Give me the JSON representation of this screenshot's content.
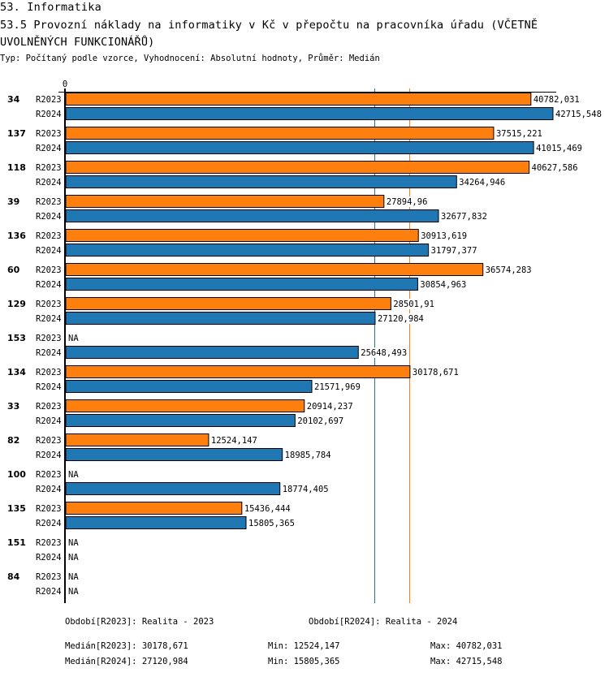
{
  "header": {
    "section": "53. Informatika",
    "title": "53.5 Provozní náklady na informatiky v Kč v přepočtu na pracovníka úřadu (VČETNĚ UVOLNĚNÝCH FUNKCIONÁŘŮ)",
    "subtitle": "Typ: Počítaný podle vzorce, Vyhodnocení: Absolutní hodnoty, Průměr: Medián"
  },
  "colors": {
    "R2023": "#ff7f0e",
    "R2024": "#1f77b4"
  },
  "chart_data": {
    "type": "bar",
    "orientation": "horizontal",
    "title": "53.5 Provozní náklady na informatiky v Kč v přepočtu na pracovníka úřadu (VČETNĚ UVOLNĚNÝCH FUNKCIONÁŘŮ)",
    "xlabel": "",
    "ylabel": "",
    "x_tick_labels": [
      "0"
    ],
    "xlim": [
      0,
      42715.548
    ],
    "categories": [
      "34",
      "137",
      "118",
      "39",
      "136",
      "60",
      "129",
      "153",
      "134",
      "33",
      "82",
      "100",
      "135",
      "151",
      "84"
    ],
    "series": [
      {
        "name": "R2023",
        "color": "#ff7f0e",
        "values": [
          40782.031,
          37515.221,
          40627.586,
          27894.96,
          30913.619,
          36574.283,
          28501.91,
          null,
          30178.671,
          20914.237,
          12524.147,
          null,
          15436.444,
          null,
          null
        ],
        "labels": [
          "40782,031",
          "37515,221",
          "40627,586",
          "27894,96",
          "30913,619",
          "36574,283",
          "28501,91",
          "NA",
          "30178,671",
          "20914,237",
          "12524,147",
          "NA",
          "15436,444",
          "NA",
          "NA"
        ]
      },
      {
        "name": "R2024",
        "color": "#1f77b4",
        "values": [
          42715.548,
          41015.469,
          34264.946,
          32677.832,
          31797.377,
          30854.963,
          27120.984,
          25648.493,
          21571.969,
          20102.697,
          18985.784,
          18774.405,
          15805.365,
          null,
          null
        ],
        "labels": [
          "42715,548",
          "41015,469",
          "34264,946",
          "32677,832",
          "31797,377",
          "30854,963",
          "27120,984",
          "25648,493",
          "21571,969",
          "20102,697",
          "18985,784",
          "18774,405",
          "15805,365",
          "NA",
          "NA"
        ]
      }
    ],
    "reference_lines": [
      {
        "name": "Medián R2023",
        "value": 30178.671,
        "color": "#ff7f0e"
      },
      {
        "name": "Medián R2024",
        "value": 27120.984,
        "color": "#1f77b4"
      }
    ],
    "grid": false,
    "legend": "none"
  },
  "footer": {
    "period_2023": "Období[R2023]: Realita - 2023",
    "period_2024": "Období[R2024]: Realita - 2024",
    "median_2023": "Medián[R2023]: 30178,671",
    "median_2024": "Medián[R2024]: 27120,984",
    "min_2023": "Min: 12524,147",
    "min_2024": "Min: 15805,365",
    "max_2023": "Max: 40782,031",
    "max_2024": "Max: 42715,548"
  }
}
